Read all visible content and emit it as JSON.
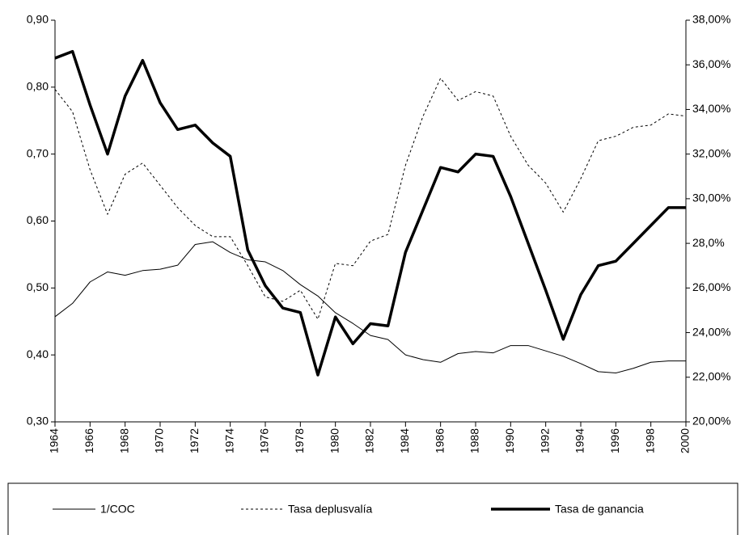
{
  "chart_data": {
    "type": "line",
    "x": [
      1964,
      1965,
      1966,
      1967,
      1968,
      1969,
      1970,
      1971,
      1972,
      1973,
      1974,
      1975,
      1976,
      1977,
      1978,
      1979,
      1980,
      1981,
      1982,
      1983,
      1984,
      1985,
      1986,
      1987,
      1988,
      1989,
      1990,
      1991,
      1992,
      1993,
      1994,
      1995,
      1996,
      1997,
      1998,
      1999,
      2000
    ],
    "xlim": [
      1964,
      2000
    ],
    "xticks": [
      1964,
      1966,
      1968,
      1970,
      1972,
      1974,
      1976,
      1978,
      1980,
      1982,
      1984,
      1986,
      1988,
      1990,
      1992,
      1994,
      1996,
      1998,
      2000
    ],
    "ylim": [
      0.3,
      0.9
    ],
    "yticks": [
      {
        "value": 0.3,
        "label": "0,30"
      },
      {
        "value": 0.4,
        "label": "0,40"
      },
      {
        "value": 0.5,
        "label": "0,50"
      },
      {
        "value": 0.6,
        "label": "0,60"
      },
      {
        "value": 0.7,
        "label": "0,70"
      },
      {
        "value": 0.8,
        "label": "0,80"
      },
      {
        "value": 0.9,
        "label": "0,90"
      }
    ],
    "y2lim": [
      20,
      38
    ],
    "y2ticks": [
      {
        "value": 20,
        "label": "20,00%"
      },
      {
        "value": 22,
        "label": "22,00%"
      },
      {
        "value": 24,
        "label": "24,00%"
      },
      {
        "value": 26,
        "label": "26,00%"
      },
      {
        "value": 28,
        "label": "28,0%"
      },
      {
        "value": 30,
        "label": "30,00%"
      },
      {
        "value": 32,
        "label": "32,00%"
      },
      {
        "value": 34,
        "label": "34,00%"
      },
      {
        "value": 36,
        "label": "36,00%"
      },
      {
        "value": 38,
        "label": "38,00%"
      }
    ],
    "series": [
      {
        "name": "1/COC",
        "color": "#000000",
        "width": 1,
        "dash": "none",
        "values": [
          0.457,
          0.477,
          0.509,
          0.524,
          0.519,
          0.526,
          0.528,
          0.534,
          0.565,
          0.569,
          0.553,
          0.542,
          0.539,
          0.526,
          0.505,
          0.488,
          0.463,
          0.447,
          0.429,
          0.423,
          0.4,
          0.393,
          0.389,
          0.402,
          0.405,
          0.403,
          0.414,
          0.414,
          0.406,
          0.398,
          0.387,
          0.375,
          0.373,
          0.38,
          0.389,
          0.391,
          0.391
        ]
      },
      {
        "name": "Tasa deplusvalía",
        "color": "#000000",
        "width": 1,
        "dash": "3 3",
        "axis": "y2",
        "values": [
          34.9,
          33.9,
          31.3,
          29.3,
          31.1,
          31.6,
          30.6,
          29.6,
          28.8,
          28.3,
          28.3,
          27.0,
          25.6,
          25.4,
          25.9,
          24.6,
          27.1,
          27.0,
          28.1,
          28.4,
          31.5,
          33.7,
          35.4,
          34.4,
          34.8,
          34.6,
          32.8,
          31.5,
          30.7,
          29.4,
          30.9,
          32.6,
          32.8,
          33.2,
          33.3,
          33.8,
          33.7
        ]
      },
      {
        "name": "Tasa de ganancia",
        "color": "#000000",
        "width": 3.5,
        "dash": "none",
        "axis": "y2",
        "values": [
          36.3,
          36.6,
          34.2,
          32.0,
          34.6,
          36.2,
          34.3,
          33.1,
          33.3,
          32.5,
          31.9,
          27.7,
          26.1,
          25.1,
          24.9,
          22.1,
          24.7,
          23.5,
          24.4,
          24.3,
          27.6,
          29.5,
          31.4,
          31.2,
          32.0,
          31.9,
          30.1,
          28.0,
          25.9,
          23.7,
          25.7,
          27.0,
          27.2,
          28.0,
          28.8,
          29.6,
          29.6
        ]
      }
    ]
  }
}
